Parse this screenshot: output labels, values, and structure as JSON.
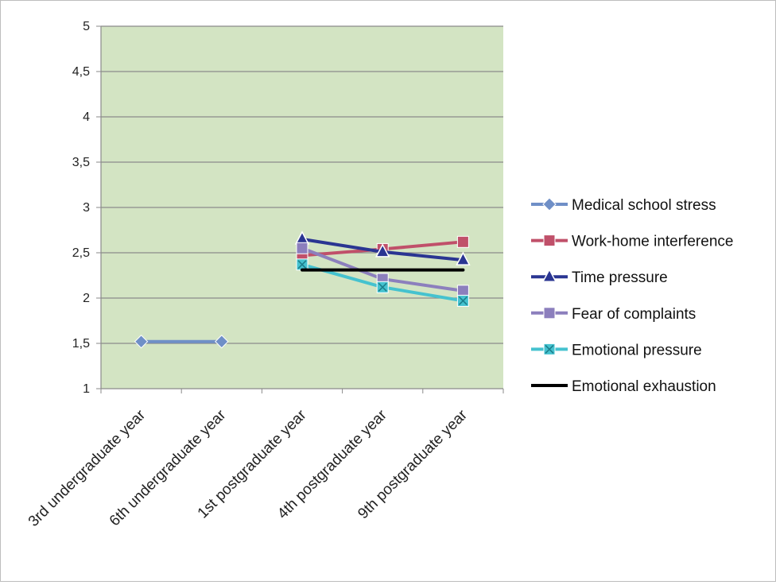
{
  "chart_data": {
    "type": "line",
    "title": "",
    "xlabel": "",
    "ylabel": "",
    "categories": [
      "3rd undergraduate year",
      "6th undergraduate year",
      "1st postgraduate year",
      "4th postgraduate year",
      "9th postgraduate year"
    ],
    "ylim": [
      1,
      5
    ],
    "yticks": [
      "1",
      "1,5",
      "2",
      "2,5",
      "3",
      "3,5",
      "4",
      "4,5",
      "5"
    ],
    "ytick_values": [
      1,
      1.5,
      2,
      2.5,
      3,
      3.5,
      4,
      4.5,
      5
    ],
    "grid": true,
    "plot_background": "#d3e4c3",
    "legend_position": "right",
    "series": [
      {
        "name": "Medical school stress",
        "values": [
          1.52,
          1.52,
          null,
          null,
          null
        ],
        "color": "#6f8fc7",
        "marker": "diamond"
      },
      {
        "name": "Work-home interference",
        "values": [
          null,
          null,
          2.47,
          2.54,
          2.62
        ],
        "color": "#c0506a",
        "marker": "square"
      },
      {
        "name": "Time pressure",
        "values": [
          null,
          null,
          2.65,
          2.51,
          2.42
        ],
        "color": "#2a3592",
        "marker": "triangle"
      },
      {
        "name": "Fear of complaints",
        "values": [
          null,
          null,
          2.55,
          2.21,
          2.08
        ],
        "color": "#8c7fbd",
        "marker": "square"
      },
      {
        "name": "Emotional pressure",
        "values": [
          null,
          null,
          2.37,
          2.12,
          1.97
        ],
        "color": "#45c2cf",
        "marker": "x-square"
      },
      {
        "name": "Emotional exhaustion",
        "values": [
          null,
          null,
          2.31,
          2.31,
          2.31
        ],
        "color": "#000000",
        "marker": "none"
      }
    ]
  }
}
